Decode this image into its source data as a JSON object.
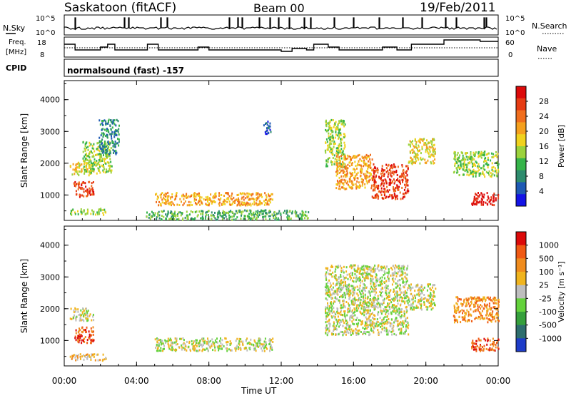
{
  "header": {
    "station": "Saskatoon (fitACF)",
    "beam": "Beam 00",
    "date": "19/Feb/2011"
  },
  "status_panels": {
    "nsky_label": "N.Sky",
    "nsky_ticks": [
      "10^5",
      "10^0"
    ],
    "nsearch_label": "N.Search",
    "nsearch_ticks": [
      "10^5",
      "10^0"
    ],
    "freq_label": "Freq.",
    "freq_unit": "[MHz]",
    "freq_ticks": [
      "18",
      "8"
    ],
    "nave_label": "Nave",
    "nave_ticks": [
      "60",
      "0"
    ],
    "cpid_label": "CPID",
    "cpid_value": "normalsound (fast) -157"
  },
  "chart_data": [
    {
      "type": "heatmap",
      "name": "power",
      "ylabel": "Slant Range [km]",
      "xlabel": "Time UT",
      "x_ticks": [
        "00:00",
        "04:00",
        "08:00",
        "12:00",
        "16:00",
        "20:00",
        "00:00"
      ],
      "x_hours": [
        0,
        4,
        8,
        12,
        16,
        20,
        24
      ],
      "y_ticks": [
        1000,
        2000,
        3000,
        4000
      ],
      "ylim": [
        200,
        4600
      ],
      "colorbar_label": "Power [dB]",
      "colorbar_ticks": [
        "28",
        "24",
        "20",
        "16",
        "12",
        "8",
        "4"
      ],
      "colorbar_colors": [
        "#1414e6",
        "#1e5ab4",
        "#2e8c6e",
        "#36b44a",
        "#9bd23c",
        "#f0d21e",
        "#f5a01e",
        "#f06e1e",
        "#e63c14",
        "#dc0a0a"
      ],
      "scatter_regions": [
        {
          "t0": 0.3,
          "t1": 1.6,
          "r0": 1650,
          "r1": 2050,
          "level": 5
        },
        {
          "t0": 0.5,
          "t1": 1.6,
          "r0": 950,
          "r1": 1450,
          "level": 8
        },
        {
          "t0": 0.3,
          "t1": 2.3,
          "r0": 400,
          "r1": 600,
          "level": 4
        },
        {
          "t0": 1.0,
          "t1": 2.6,
          "r0": 1700,
          "r1": 2700,
          "level": 4
        },
        {
          "t0": 1.9,
          "t1": 3.0,
          "r0": 2300,
          "r1": 3400,
          "level": 2
        },
        {
          "t0": 5.0,
          "t1": 11.5,
          "r0": 700,
          "r1": 1100,
          "level": 6
        },
        {
          "t0": 4.5,
          "t1": 13.5,
          "r0": 250,
          "r1": 550,
          "level": 3
        },
        {
          "t0": 11.0,
          "t1": 11.4,
          "r0": 2950,
          "r1": 3350,
          "level": 1
        },
        {
          "t0": 14.4,
          "t1": 15.5,
          "r0": 1900,
          "r1": 3400,
          "level": 4
        },
        {
          "t0": 15.0,
          "t1": 17.0,
          "r0": 1200,
          "r1": 2300,
          "level": 6
        },
        {
          "t0": 17.0,
          "t1": 19.0,
          "r0": 900,
          "r1": 2000,
          "level": 8
        },
        {
          "t0": 19.0,
          "t1": 20.5,
          "r0": 2000,
          "r1": 2800,
          "level": 5
        },
        {
          "t0": 21.5,
          "t1": 24.0,
          "r0": 1600,
          "r1": 2400,
          "level": 4
        },
        {
          "t0": 22.5,
          "t1": 24.0,
          "r0": 700,
          "r1": 1100,
          "level": 9
        }
      ]
    },
    {
      "type": "heatmap",
      "name": "velocity",
      "ylabel": "Slant Range [km]",
      "xlabel": "Time UT",
      "x_ticks": [
        "00:00",
        "04:00",
        "08:00",
        "12:00",
        "16:00",
        "20:00",
        "00:00"
      ],
      "x_hours": [
        0,
        4,
        8,
        12,
        16,
        20,
        24
      ],
      "y_ticks": [
        1000,
        2000,
        3000,
        4000
      ],
      "ylim": [
        200,
        4600
      ],
      "colorbar_label": "Velocity [m s⁻¹]",
      "colorbar_ticks": [
        "1000",
        "500",
        "100",
        "25",
        "-25",
        "-100",
        "-500",
        "-1000"
      ],
      "colorbar_colors": [
        "#1e3cc8",
        "#2e6e6e",
        "#36a03c",
        "#64d23c",
        "#bebebe",
        "#f0b41e",
        "#f08c1e",
        "#f05a14",
        "#dc0a0a"
      ],
      "scatter_regions": [
        {
          "t0": 0.3,
          "t1": 1.6,
          "r0": 1650,
          "r1": 2050,
          "level": 4
        },
        {
          "t0": 0.5,
          "t1": 1.6,
          "r0": 950,
          "r1": 1450,
          "level": 7
        },
        {
          "t0": 0.3,
          "t1": 2.3,
          "r0": 400,
          "r1": 600,
          "level": 5
        },
        {
          "t0": 5.0,
          "t1": 11.5,
          "r0": 700,
          "r1": 1100,
          "level": 4
        },
        {
          "t0": 14.4,
          "t1": 19.0,
          "r0": 1200,
          "r1": 3400,
          "level": 4
        },
        {
          "t0": 19.0,
          "t1": 20.5,
          "r0": 2000,
          "r1": 2800,
          "level": 4
        },
        {
          "t0": 21.5,
          "t1": 24.0,
          "r0": 1600,
          "r1": 2400,
          "level": 6
        },
        {
          "t0": 22.5,
          "t1": 24.0,
          "r0": 700,
          "r1": 1100,
          "level": 7
        }
      ]
    }
  ],
  "colors": {
    "axis": "#000000",
    "background": "#ffffff"
  }
}
